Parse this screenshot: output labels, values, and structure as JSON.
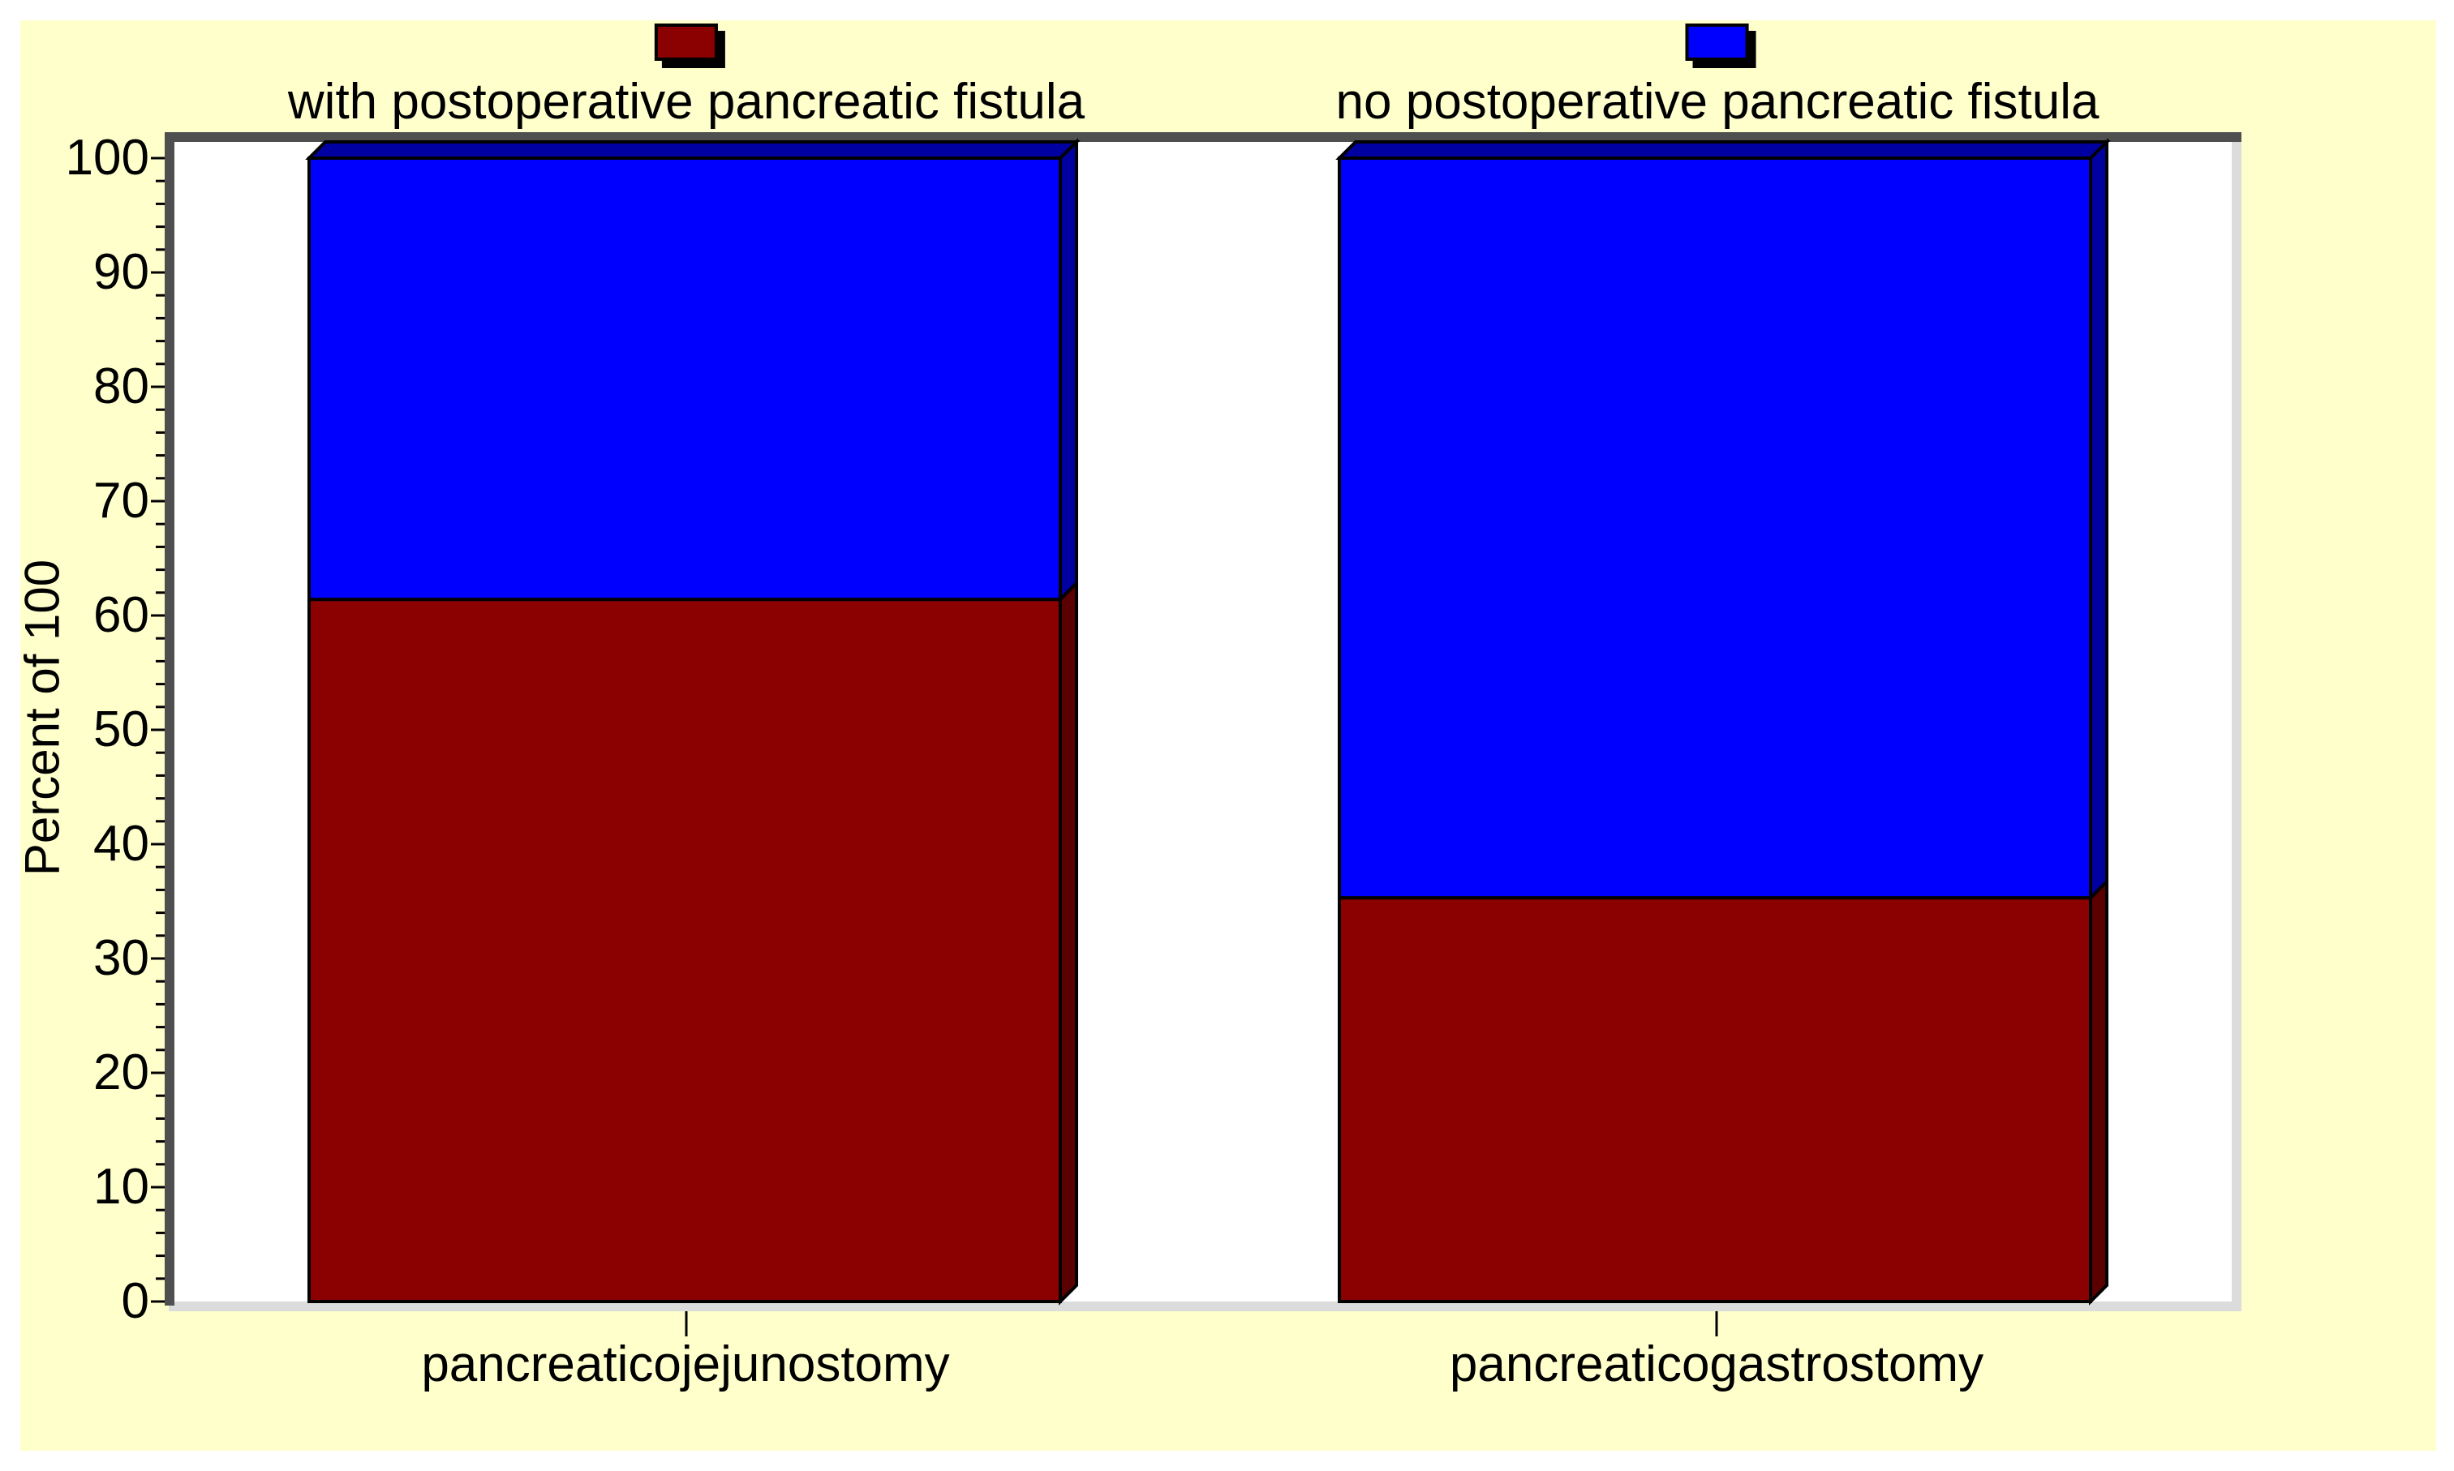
{
  "chart_data": {
    "type": "bar",
    "stacked": true,
    "style": "3d",
    "title": "",
    "categories": [
      "pancreaticojejunostomy",
      "pancreaticogastrostomy"
    ],
    "series": [
      {
        "name": "with postoperative pancreatic fistula",
        "color": "#8B0000",
        "side_color": "#5A0000",
        "values": [
          61.4,
          35.3
        ]
      },
      {
        "name": "no postoperative pancreatic fistula",
        "color": "#0000FF",
        "side_color": "#0000A0",
        "values": [
          38.6,
          64.7
        ]
      }
    ],
    "xlabel": "",
    "ylabel": "Percent of 100",
    "ylim": [
      0,
      100
    ],
    "y_major_ticks": [
      0,
      10,
      20,
      30,
      40,
      50,
      60,
      70,
      80,
      90,
      100
    ],
    "y_minor_tick_step": 2,
    "grid": false,
    "legend_position": "top",
    "background_color": "#FFFFCC",
    "plot_background_color": "#FFFFFF",
    "outline_color": "#000000",
    "frame_dark_color": "#4F4F4F",
    "frame_light_color": "#DCDCDC",
    "text_color": "#000000"
  }
}
